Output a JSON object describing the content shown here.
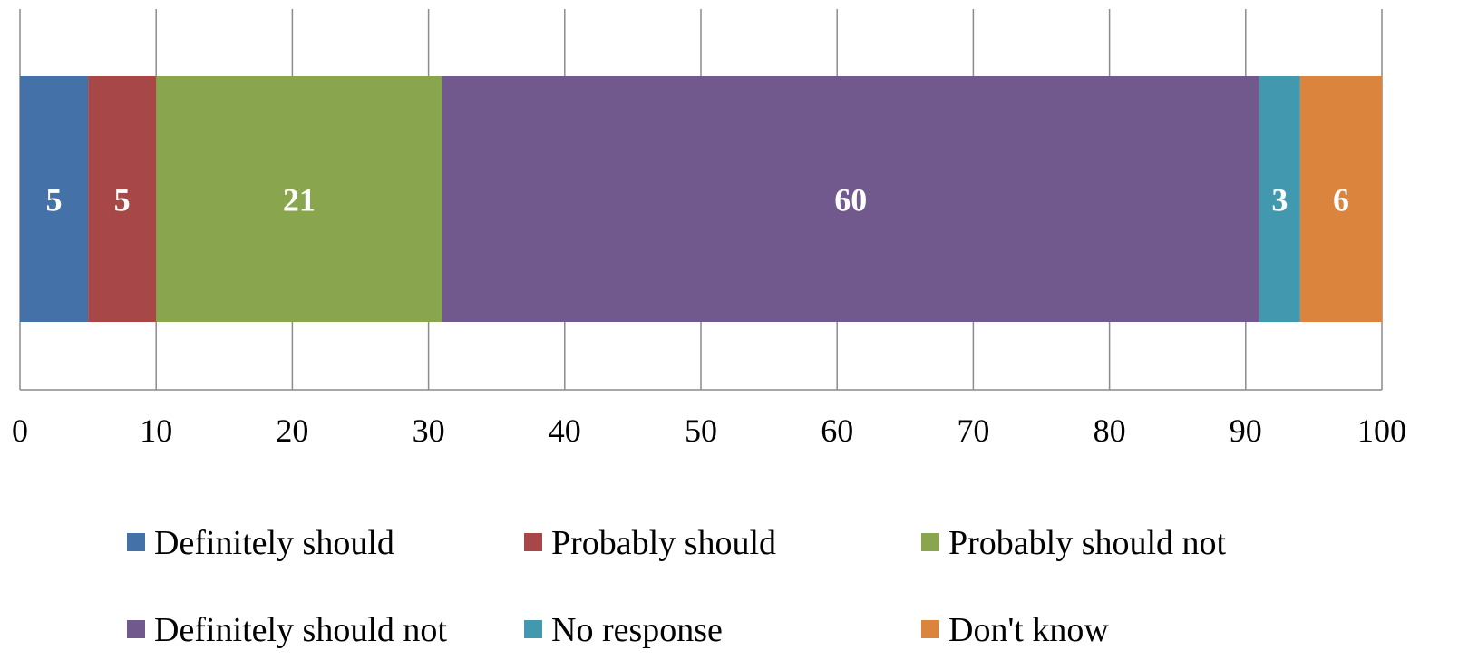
{
  "chart_data": {
    "type": "bar",
    "orientation": "horizontal",
    "stacked": true,
    "title": "",
    "xlabel": "",
    "ylabel": "",
    "xlim": [
      0,
      100
    ],
    "xticks": [
      "0",
      "10",
      "20",
      "30",
      "40",
      "50",
      "60",
      "70",
      "80",
      "90",
      "100"
    ],
    "grid": true,
    "legend_position": "bottom",
    "series": [
      {
        "name": "Definitely should",
        "value": 5,
        "color": "#4472A8"
      },
      {
        "name": "Probably should",
        "value": 5,
        "color": "#A84747"
      },
      {
        "name": "Probably should not",
        "value": 21,
        "color": "#89A54E"
      },
      {
        "name": "Definitely should not",
        "value": 60,
        "color": "#71598D"
      },
      {
        "name": "No response",
        "value": 3,
        "color": "#4198AF"
      },
      {
        "name": "Don't know",
        "value": 6,
        "color": "#DB843D"
      }
    ]
  }
}
